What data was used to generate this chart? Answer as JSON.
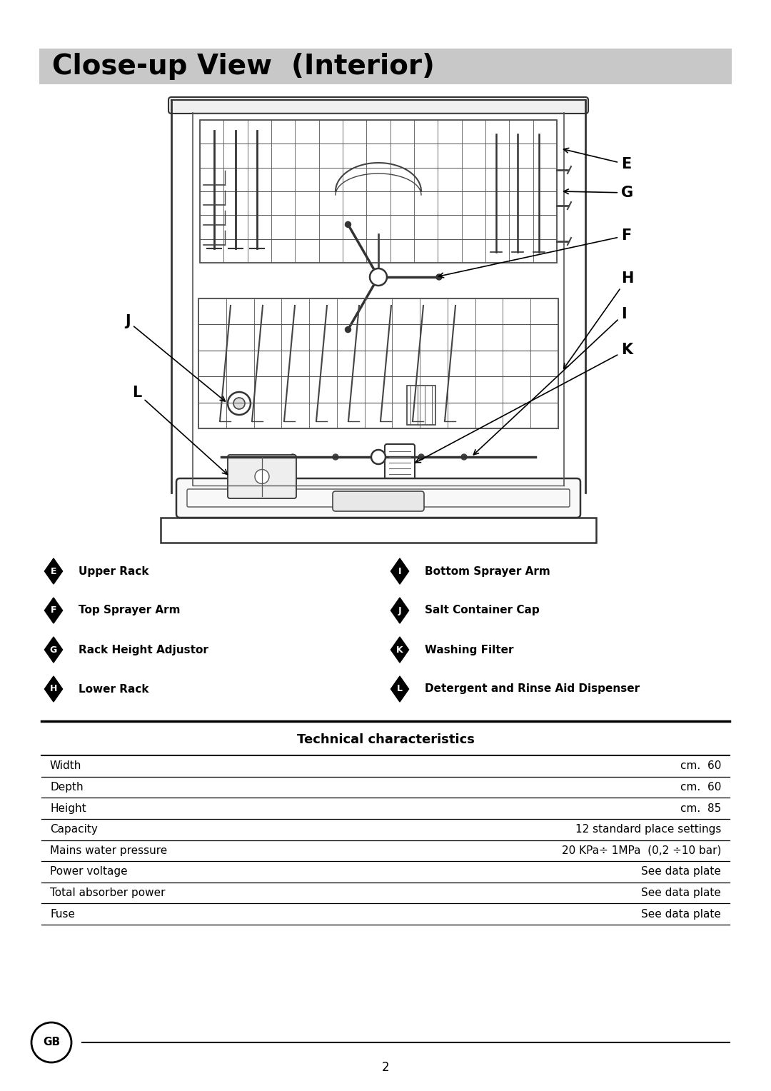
{
  "title": "Close-up View  (Interior)",
  "title_bg": "#c8c8c8",
  "page_bg": "#ffffff",
  "legend_items_left": [
    {
      "letter": "E",
      "text": "Upper Rack"
    },
    {
      "letter": "F",
      "text": "Top Sprayer Arm"
    },
    {
      "letter": "G",
      "text": "Rack Height Adjustor"
    },
    {
      "letter": "H",
      "text": "Lower Rack"
    }
  ],
  "legend_items_right": [
    {
      "letter": "I",
      "text": "Bottom Sprayer Arm"
    },
    {
      "letter": "J",
      "text": "Salt Container Cap"
    },
    {
      "letter": "K",
      "text": "Washing Filter"
    },
    {
      "letter": "L",
      "text": "Detergent and Rinse Aid Dispenser"
    }
  ],
  "tech_title": "Technical characteristics",
  "tech_rows": [
    {
      "label": "Width",
      "value": "cm.  60"
    },
    {
      "label": "Depth",
      "value": "cm.  60"
    },
    {
      "label": "Height",
      "value": "cm.  85"
    },
    {
      "label": "Capacity",
      "value": "12 standard place settings"
    },
    {
      "label": "Mains water pressure",
      "value": "20 KPa÷ 1MPa  (0,2 ÷10 bar)"
    },
    {
      "label": "Power voltage",
      "value": "See data plate"
    },
    {
      "label": "Total absorber power",
      "value": "See data plate"
    },
    {
      "label": "Fuse",
      "value": "See data plate"
    }
  ],
  "footer_text": "2",
  "gb_circle_text": "GB"
}
